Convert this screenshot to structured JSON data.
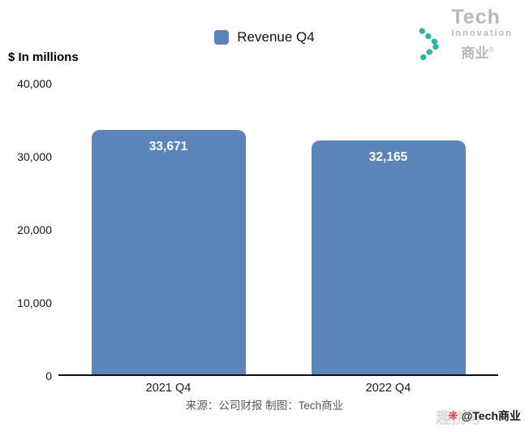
{
  "header": {
    "legend_label": "Revenue Q4",
    "logo": {
      "line1": "Tech",
      "line2": "Innovation",
      "line3": "商业",
      "registered": "®",
      "chevron_color": "#2ab5a5"
    }
  },
  "chart_data": {
    "type": "bar",
    "title": "",
    "legend": [
      "Revenue Q4"
    ],
    "legend_position": "top-center",
    "ylabel": "$ In millions",
    "xlabel": "",
    "categories": [
      "2021 Q4",
      "2022 Q4"
    ],
    "values": [
      33671,
      32165
    ],
    "value_labels": [
      "33,671",
      "32,165"
    ],
    "ylim": [
      0,
      40000
    ],
    "yticks": [
      40000,
      30000,
      20000,
      10000,
      0
    ],
    "ytick_labels": [
      "40,000",
      "30,000",
      "20,000",
      "10,000",
      "0"
    ],
    "bar_color": "#5b84b8",
    "value_label_color": "#ffffff",
    "grid": false
  },
  "footer": {
    "source": "来源：公司财报 制图：Tech商业",
    "watermark": {
      "back_text": "趣拼号",
      "icon_glyph": "❋",
      "handle": "@Tech商业"
    }
  }
}
